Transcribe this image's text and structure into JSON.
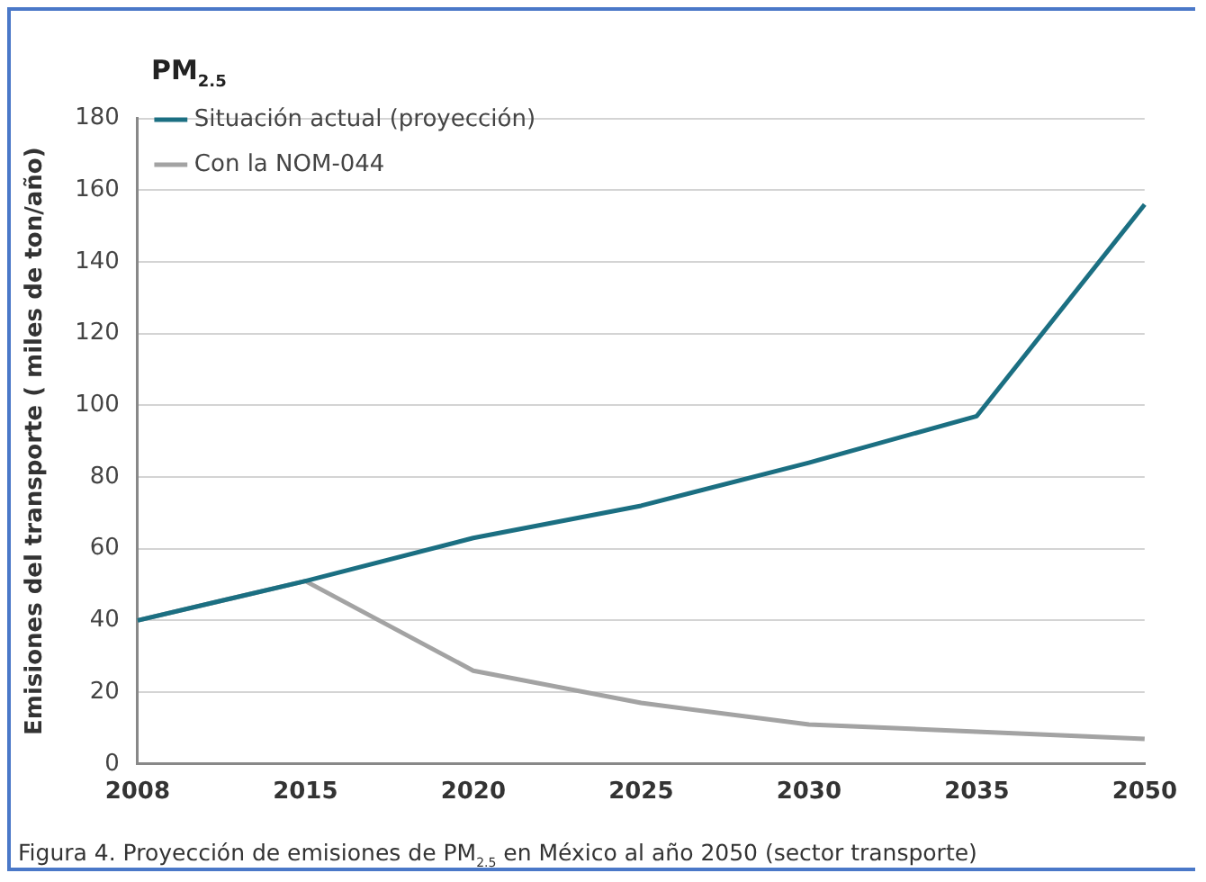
{
  "chart_data": {
    "type": "line",
    "title": "PM$_{2.5}$",
    "ylabel": "Emisiones del transporte ( miles de ton/año)",
    "categories": [
      "2008",
      "2015",
      "2020",
      "2025",
      "2030",
      "2035",
      "2050"
    ],
    "series": [
      {
        "name": "Situación actual (proyección)",
        "color": "#1b6f82",
        "values": [
          40,
          51,
          63,
          72,
          84,
          97,
          156
        ]
      },
      {
        "name": "Con la NOM-044",
        "color": "#a3a3a3",
        "values": [
          40,
          51,
          26,
          17,
          11,
          9,
          7
        ]
      }
    ],
    "ylim": [
      0,
      180
    ],
    "yticks": [
      0,
      20,
      40,
      60,
      80,
      100,
      120,
      140,
      160,
      180
    ],
    "grid": "y",
    "legend": "top left",
    "marker": "none",
    "line_style": "solid",
    "annotations": [
      "Figura 4. Proyección de emisiones de PM$_{2.5}$ en México al año 2050 (sector transporte)"
    ]
  }
}
